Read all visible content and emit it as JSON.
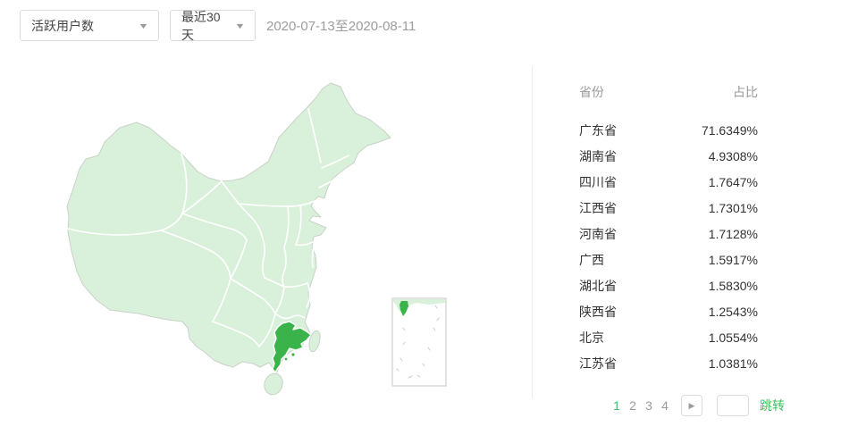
{
  "filters": {
    "metric_select": {
      "value": "活跃用户数",
      "caret_icon": "▼"
    },
    "range_select": {
      "value": "最近30天",
      "caret_icon": "▼"
    },
    "date_range": "2020-07-13至2020-08-11"
  },
  "map": {
    "highlighted_province": "广东省",
    "base_color": "#d9f1da",
    "highlight_color": "#3ab44a",
    "coast_color": "#c9d2c9",
    "border_color": "#ffffff"
  },
  "table": {
    "columns": [
      "省份",
      "占比"
    ],
    "rows": [
      {
        "province": "广东省",
        "share": "71.6349%"
      },
      {
        "province": "湖南省",
        "share": "4.9308%"
      },
      {
        "province": "四川省",
        "share": "1.7647%"
      },
      {
        "province": "江西省",
        "share": "1.7301%"
      },
      {
        "province": "河南省",
        "share": "1.7128%"
      },
      {
        "province": "广西",
        "share": "1.5917%"
      },
      {
        "province": "湖北省",
        "share": "1.5830%"
      },
      {
        "province": "陕西省",
        "share": "1.2543%"
      },
      {
        "province": "北京",
        "share": "1.0554%"
      },
      {
        "province": "江苏省",
        "share": "1.0381%"
      }
    ]
  },
  "pagination": {
    "pages": [
      "1",
      "2",
      "3",
      "4"
    ],
    "active_page": "1",
    "next_icon": "▶",
    "jump_input_value": "",
    "jump_label": "跳转",
    "active_color": "#3cc15e"
  }
}
